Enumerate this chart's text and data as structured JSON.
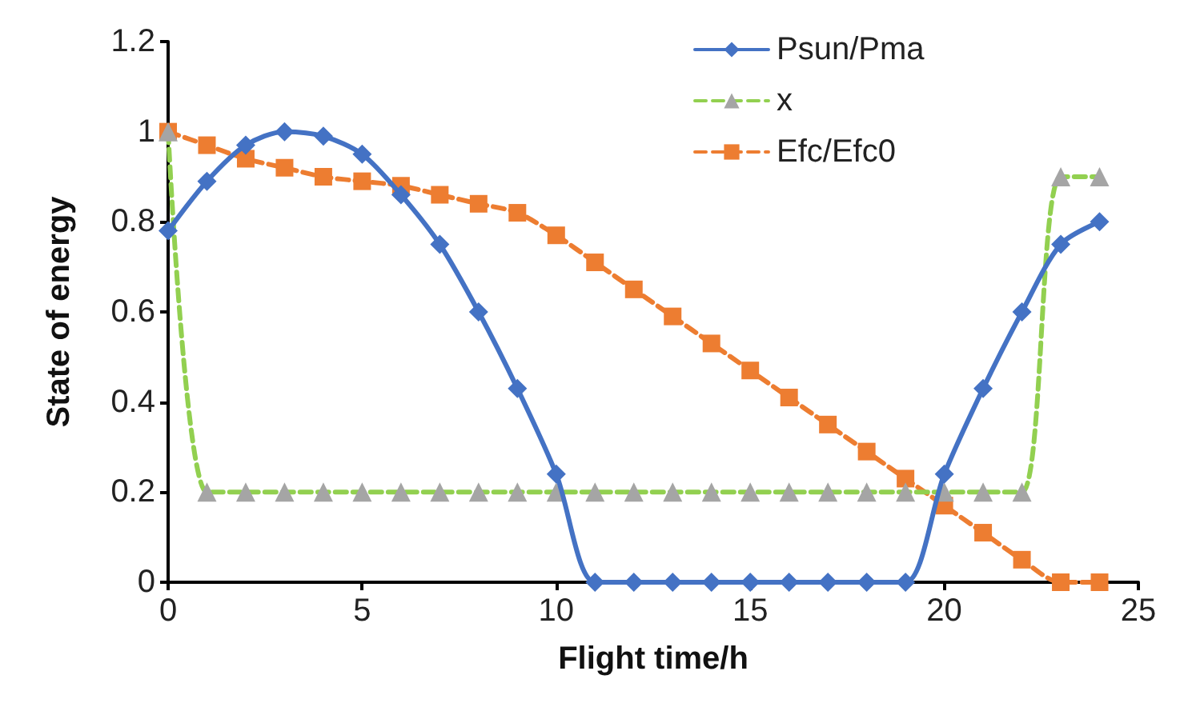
{
  "chart_data": {
    "type": "line",
    "xlabel": "Flight time/h",
    "ylabel": "State of energy",
    "x": [
      0,
      1,
      2,
      3,
      4,
      5,
      6,
      7,
      8,
      9,
      10,
      11,
      12,
      13,
      14,
      15,
      16,
      17,
      18,
      19,
      20,
      21,
      22,
      23,
      24
    ],
    "series": [
      {
        "name": "Psun/Pma",
        "color": "#4472c4",
        "marker": "diamond",
        "line_style": "solid",
        "values": [
          0.78,
          0.89,
          0.97,
          1.0,
          0.99,
          0.95,
          0.86,
          0.75,
          0.6,
          0.43,
          0.24,
          0,
          0,
          0,
          0,
          0,
          0,
          0,
          0,
          0,
          0.24,
          0.43,
          0.6,
          0.75,
          0.8
        ]
      },
      {
        "name": "x",
        "color": "#92d050",
        "colors": [
          "#a5a5a5",
          "#a5a5a5",
          "#a5a5a5",
          "#a5a5a5",
          "#a5a5a5",
          "#a5a5a5",
          "#a5a5a5",
          "#a5a5a5",
          "#a5a5a5",
          "#a5a5a5",
          "#a5a5a5",
          "#a5a5a5",
          "#a5a5a5",
          "#a5a5a5",
          "#a5a5a5",
          "#a5a5a5",
          "#a5a5a5",
          "#a5a5a5",
          "#a5a5a5",
          "#a5a5a5",
          "#a5a5a5",
          "#a5a5a5",
          "#a5a5a5",
          "#a5a5a5",
          "#a5a5a5"
        ],
        "marker": "triangle",
        "line_style": "dashed",
        "values": [
          1.0,
          0.2,
          0.2,
          0.2,
          0.2,
          0.2,
          0.2,
          0.2,
          0.2,
          0.2,
          0.2,
          0.2,
          0.2,
          0.2,
          0.2,
          0.2,
          0.2,
          0.2,
          0.2,
          0.2,
          0.2,
          0.2,
          0.2,
          0.9,
          0.9
        ]
      },
      {
        "name": "Efc/Efc0",
        "color": "#ed7d31",
        "marker": "square",
        "line_style": "dashed",
        "values": [
          1.0,
          0.97,
          0.94,
          0.92,
          0.9,
          0.89,
          0.88,
          0.86,
          0.84,
          0.82,
          0.77,
          0.71,
          0.65,
          0.59,
          0.53,
          0.47,
          0.41,
          0.35,
          0.29,
          0.23,
          0.17,
          0.11,
          0.05,
          0,
          0
        ]
      }
    ],
    "xlim": [
      0,
      25
    ],
    "xticks": [
      0,
      5,
      10,
      15,
      20,
      25
    ],
    "ylim": [
      0,
      1.2
    ],
    "yticks": [
      0,
      0.2,
      0.4,
      0.6,
      0.8,
      1,
      1.2
    ],
    "grid": false,
    "legend": "top right"
  }
}
